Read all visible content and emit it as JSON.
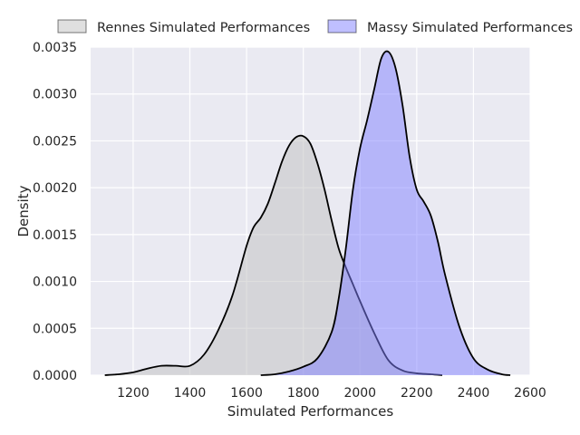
{
  "chart_data": {
    "type": "area",
    "xlabel": "Simulated Performances",
    "ylabel": "Density",
    "xlim": [
      1050,
      2600
    ],
    "ylim": [
      0,
      0.0035
    ],
    "x_ticks": [
      1200,
      1400,
      1600,
      1800,
      2000,
      2200,
      2400,
      2600
    ],
    "x_tick_labels": [
      "1200",
      "1400",
      "1600",
      "1800",
      "2000",
      "2200",
      "2400",
      "2600"
    ],
    "y_ticks": [
      0,
      0.0005,
      0.001,
      0.0015,
      0.002,
      0.0025,
      0.003,
      0.0035
    ],
    "y_tick_labels": [
      "0.0000",
      "0.0005",
      "0.0010",
      "0.0015",
      "0.0020",
      "0.0025",
      "0.0030",
      "0.0035"
    ],
    "grid": true,
    "legend_position": "top",
    "background_color": "#eaeaf2",
    "series": [
      {
        "name": "Rennes Simulated Performances",
        "fill": "#bfbfbf",
        "x": [
          1100,
          1150,
          1200,
          1250,
          1300,
          1350,
          1400,
          1450,
          1500,
          1550,
          1600,
          1625,
          1650,
          1675,
          1700,
          1725,
          1750,
          1775,
          1800,
          1825,
          1850,
          1875,
          1900,
          1925,
          1950,
          1975,
          2000,
          2050,
          2100,
          2150,
          2200,
          2250,
          2290
        ],
        "y": [
          0.0,
          1e-05,
          3e-05,
          7e-05,
          0.0001,
          0.0001,
          0.0001,
          0.00022,
          0.00048,
          0.00085,
          0.00138,
          0.00158,
          0.00168,
          0.00183,
          0.00205,
          0.00228,
          0.00245,
          0.00254,
          0.00255,
          0.00247,
          0.00226,
          0.00198,
          0.00165,
          0.00135,
          0.00115,
          0.00097,
          0.00079,
          0.00045,
          0.00016,
          5e-05,
          2e-05,
          1e-05,
          0.0
        ]
      },
      {
        "name": "Massy Simulated Performances",
        "fill": "#8080ff",
        "x": [
          1650,
          1700,
          1750,
          1800,
          1850,
          1900,
          1925,
          1950,
          1975,
          2000,
          2025,
          2050,
          2075,
          2100,
          2125,
          2150,
          2175,
          2200,
          2225,
          2250,
          2275,
          2300,
          2350,
          2400,
          2450,
          2500,
          2530
        ],
        "y": [
          0.0,
          1e-05,
          4e-05,
          9e-05,
          0.00018,
          0.00046,
          0.00082,
          0.00135,
          0.00198,
          0.00242,
          0.00272,
          0.00305,
          0.00338,
          0.00345,
          0.00328,
          0.00288,
          0.00233,
          0.00198,
          0.00185,
          0.0017,
          0.00142,
          0.00107,
          0.00052,
          0.00018,
          6e-05,
          1e-05,
          0.0
        ]
      }
    ]
  }
}
